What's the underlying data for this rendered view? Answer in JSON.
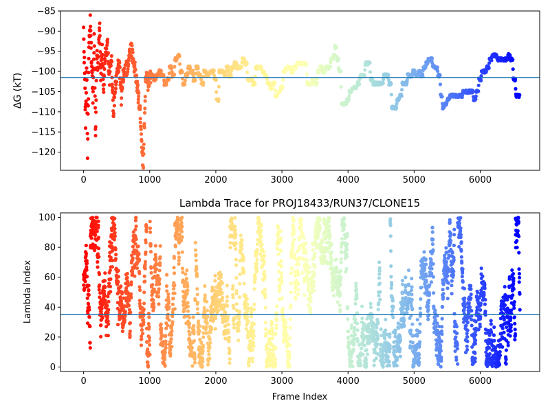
{
  "figure": {
    "title_bottom": "Lambda Trace for PROJ18433/RUN37/CLONE15"
  },
  "chart_data": [
    {
      "type": "scatter",
      "title": "",
      "xlabel": "",
      "ylabel": "ΔG (kT)",
      "xlim": [
        -350,
        6900
      ],
      "ylim": [
        -124.5,
        -85
      ],
      "xticks": [
        0,
        1000,
        2000,
        3000,
        4000,
        5000,
        6000
      ],
      "yticks": [
        -120,
        -115,
        -110,
        -105,
        -100,
        -95,
        -90,
        -85
      ],
      "ytick_labels": [
        "−120",
        "−115",
        "−110",
        "−105",
        "−100",
        "−95",
        "−90",
        "−85"
      ],
      "hline": -101.5,
      "hline_color": "#1f77b4",
      "colormap": "rainbow (reversed with frame index)",
      "trace": [
        [
          0,
          -90
        ],
        [
          15,
          -100
        ],
        [
          30,
          -113
        ],
        [
          45,
          -98
        ],
        [
          60,
          -120
        ],
        [
          80,
          -95
        ],
        [
          100,
          -88
        ],
        [
          120,
          -97
        ],
        [
          140,
          -106
        ],
        [
          160,
          -92
        ],
        [
          180,
          -115
        ],
        [
          200,
          -96
        ],
        [
          220,
          -99
        ],
        [
          240,
          -88
        ],
        [
          260,
          -101
        ],
        [
          280,
          -95
        ],
        [
          300,
          -104
        ],
        [
          330,
          -96
        ],
        [
          360,
          -93
        ],
        [
          390,
          -102
        ],
        [
          420,
          -96
        ],
        [
          450,
          -110
        ],
        [
          480,
          -104
        ],
        [
          510,
          -100
        ],
        [
          540,
          -98
        ],
        [
          570,
          -107
        ],
        [
          600,
          -101
        ],
        [
          630,
          -100
        ],
        [
          660,
          -99
        ],
        [
          690,
          -96
        ],
        [
          720,
          -94
        ],
        [
          750,
          -97
        ],
        [
          780,
          -100
        ],
        [
          820,
          -105
        ],
        [
          860,
          -111
        ],
        [
          900,
          -124
        ],
        [
          940,
          -101
        ],
        [
          980,
          -103
        ],
        [
          1020,
          -101
        ],
        [
          1060,
          -102
        ],
        [
          1100,
          -101
        ],
        [
          1140,
          -100
        ],
        [
          1180,
          -101
        ],
        [
          1220,
          -103
        ],
        [
          1260,
          -102
        ],
        [
          1300,
          -99
        ],
        [
          1340,
          -101
        ],
        [
          1380,
          -97
        ],
        [
          1420,
          -96
        ],
        [
          1460,
          -100
        ],
        [
          1500,
          -103
        ],
        [
          1540,
          -101
        ],
        [
          1580,
          -99
        ],
        [
          1620,
          -100
        ],
        [
          1660,
          -102
        ],
        [
          1700,
          -99
        ],
        [
          1740,
          -101
        ],
        [
          1780,
          -103
        ],
        [
          1820,
          -100
        ],
        [
          1860,
          -101
        ],
        [
          1900,
          -100
        ],
        [
          1940,
          -100
        ],
        [
          1980,
          -102
        ],
        [
          2010,
          -107
        ],
        [
          2050,
          -100
        ],
        [
          2090,
          -100
        ],
        [
          2130,
          -101
        ],
        [
          2160,
          -99
        ],
        [
          2200,
          -101
        ],
        [
          2240,
          -99
        ],
        [
          2280,
          -98
        ],
        [
          2320,
          -99
        ],
        [
          2360,
          -99
        ],
        [
          2400,
          -97
        ],
        [
          2440,
          -98
        ],
        [
          2480,
          -102
        ],
        [
          2520,
          -102
        ],
        [
          2560,
          -103
        ],
        [
          2600,
          -99
        ],
        [
          2650,
          -99
        ],
        [
          2700,
          -100
        ],
        [
          2740,
          -101
        ],
        [
          2780,
          -103
        ],
        [
          2820,
          -104
        ],
        [
          2860,
          -103
        ],
        [
          2900,
          -106
        ],
        [
          2940,
          -105
        ],
        [
          2980,
          -104
        ],
        [
          3020,
          -100
        ],
        [
          3060,
          -99
        ],
        [
          3100,
          -99
        ],
        [
          3140,
          -100
        ],
        [
          3180,
          -99
        ],
        [
          3220,
          -98
        ],
        [
          3260,
          -98
        ],
        [
          3300,
          -98
        ],
        [
          3340,
          -98
        ],
        [
          3380,
          -103
        ],
        [
          3420,
          -103
        ],
        [
          3460,
          -102
        ],
        [
          3500,
          -103
        ],
        [
          3540,
          -100
        ],
        [
          3580,
          -99
        ],
        [
          3620,
          -100
        ],
        [
          3660,
          -99
        ],
        [
          3700,
          -99
        ],
        [
          3740,
          -97
        ],
        [
          3780,
          -96
        ],
        [
          3800,
          -94
        ],
        [
          3830,
          -97
        ],
        [
          3860,
          -100
        ],
        [
          3900,
          -108
        ],
        [
          3940,
          -108
        ],
        [
          3980,
          -107
        ],
        [
          4020,
          -105
        ],
        [
          4060,
          -104
        ],
        [
          4100,
          -104
        ],
        [
          4140,
          -103
        ],
        [
          4180,
          -101
        ],
        [
          4220,
          -101
        ],
        [
          4260,
          -98
        ],
        [
          4300,
          -98
        ],
        [
          4340,
          -102
        ],
        [
          4380,
          -103
        ],
        [
          4420,
          -103
        ],
        [
          4460,
          -103
        ],
        [
          4500,
          -103
        ],
        [
          4540,
          -101
        ],
        [
          4580,
          -101
        ],
        [
          4620,
          -103
        ],
        [
          4660,
          -109
        ],
        [
          4700,
          -109
        ],
        [
          4740,
          -107
        ],
        [
          4780,
          -106
        ],
        [
          4820,
          -103
        ],
        [
          4860,
          -103
        ],
        [
          4900,
          -101
        ],
        [
          4940,
          -101
        ],
        [
          4980,
          -100
        ],
        [
          5020,
          -101
        ],
        [
          5060,
          -100
        ],
        [
          5100,
          -101
        ],
        [
          5140,
          -99
        ],
        [
          5180,
          -98
        ],
        [
          5210,
          -97
        ],
        [
          5240,
          -97
        ],
        [
          5280,
          -99
        ],
        [
          5320,
          -99
        ],
        [
          5360,
          -101
        ],
        [
          5400,
          -106
        ],
        [
          5430,
          -109
        ],
        [
          5460,
          -108
        ],
        [
          5500,
          -107
        ],
        [
          5540,
          -106
        ],
        [
          5580,
          -106
        ],
        [
          5620,
          -106
        ],
        [
          5660,
          -106
        ],
        [
          5700,
          -106
        ],
        [
          5740,
          -105
        ],
        [
          5780,
          -105
        ],
        [
          5820,
          -105
        ],
        [
          5860,
          -105
        ],
        [
          5900,
          -107
        ],
        [
          5940,
          -105
        ],
        [
          5980,
          -102
        ],
        [
          6020,
          -100
        ],
        [
          6060,
          -100
        ],
        [
          6100,
          -99
        ],
        [
          6140,
          -97
        ],
        [
          6180,
          -96
        ],
        [
          6220,
          -96
        ],
        [
          6260,
          -97
        ],
        [
          6300,
          -97
        ],
        [
          6340,
          -97
        ],
        [
          6380,
          -97
        ],
        [
          6420,
          -96
        ],
        [
          6460,
          -97
        ],
        [
          6500,
          -102
        ],
        [
          6540,
          -106
        ],
        [
          6580,
          -106
        ],
        [
          6600,
          -105
        ]
      ]
    },
    {
      "type": "scatter",
      "title": "Lambda Trace for PROJ18433/RUN37/CLONE15",
      "xlabel": "Frame Index",
      "ylabel": "Lambda Index",
      "xlim": [
        -350,
        6900
      ],
      "ylim": [
        -3,
        103
      ],
      "xticks": [
        0,
        1000,
        2000,
        3000,
        4000,
        5000,
        6000
      ],
      "yticks": [
        0,
        20,
        40,
        60,
        80,
        100
      ],
      "hline": 35,
      "hline_color": "#1f77b4",
      "frames_max": 6600,
      "lambda_min": 0,
      "lambda_max": 100
    }
  ]
}
